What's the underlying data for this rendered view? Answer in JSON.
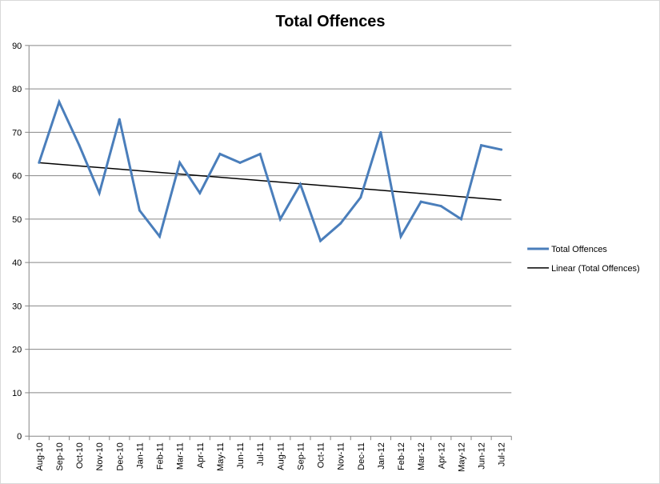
{
  "chart_data": {
    "type": "line",
    "title": "Total Offences",
    "xlabel": "",
    "ylabel": "",
    "ylim": [
      0,
      90
    ],
    "yticks": [
      0,
      10,
      20,
      30,
      40,
      50,
      60,
      70,
      80,
      90
    ],
    "grid": true,
    "legend_position": "right",
    "categories": [
      "Aug-10",
      "Sep-10",
      "Oct-10",
      "Nov-10",
      "Dec-10",
      "Jan-11",
      "Feb-11",
      "Mar-11",
      "Apr-11",
      "May-11",
      "Jun-11",
      "Jul-11",
      "Aug-11",
      "Sep-11",
      "Oct-11",
      "Nov-11",
      "Dec-11",
      "Jan-12",
      "Feb-12",
      "Mar-12",
      "Apr-12",
      "May-12",
      "Jun-12",
      "Jul-12"
    ],
    "series": [
      {
        "name": "Total Offences",
        "color": "#4a7ebb",
        "values": [
          63,
          77,
          67,
          56,
          73,
          52,
          46,
          63,
          56,
          65,
          63,
          65,
          50,
          58,
          45,
          49,
          55,
          70,
          46,
          54,
          53,
          50,
          67,
          66
        ]
      }
    ],
    "trendline": {
      "name": "Linear (Total Offences)",
      "color": "#000000",
      "start": 63,
      "end": 54.4
    }
  }
}
